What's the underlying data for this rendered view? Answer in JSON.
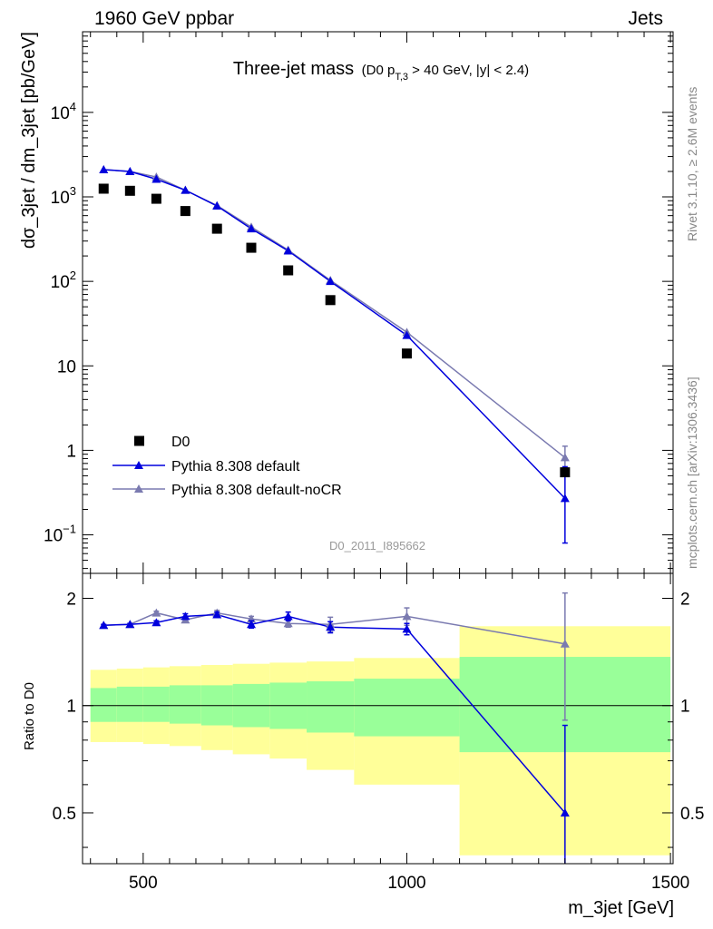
{
  "header": {
    "left": "1960 GeV ppbar",
    "right": "Jets",
    "side_top": "Rivet 3.1.10, ≥ 2.6M events",
    "side_bottom": "mcplots.cern.ch [arXiv:1306.3436]"
  },
  "chart_data": [
    {
      "type": "scatter",
      "panel": "main",
      "title": "Three-jet mass",
      "title_cut": "(D0 p_T,3 > 40 GeV, |y| < 2.4)",
      "title_parts": {
        "p": "(D0 p",
        "sub": "T,3",
        "rest": " > 40 GeV, |y| < 2.4)"
      },
      "xlabel": "m_3jet [GeV]",
      "ylabel": "dσ_3jet / dm_3jet [pb/GeV]",
      "xlim": [
        385,
        1505
      ],
      "ylim": [
        0.035,
        90000
      ],
      "yscale": "log",
      "watermark": "D0_2011_I895662",
      "legend_position": "lower-left",
      "y_ticks": [
        {
          "value": 10000,
          "base": "10",
          "exp": "4"
        },
        {
          "value": 1000,
          "base": "10",
          "exp": "3"
        },
        {
          "value": 100,
          "base": "10",
          "exp": "2"
        },
        {
          "value": 10,
          "base": "10",
          "exp": ""
        },
        {
          "value": 1,
          "base": "1",
          "exp": ""
        },
        {
          "value": 0.1,
          "base": "10",
          "exp": "−1"
        }
      ],
      "series": [
        {
          "name": "D0",
          "color": "#000000",
          "marker": "square",
          "x": [
            425,
            475,
            525,
            580,
            640,
            705,
            775,
            855,
            1000,
            1300
          ],
          "y": [
            1250,
            1180,
            950,
            680,
            420,
            250,
            135,
            60,
            14,
            0.55
          ]
        },
        {
          "name": "Pythia 8.308 default",
          "color": "#0000dd",
          "marker": "triangle",
          "x": [
            425,
            475,
            525,
            580,
            640,
            705,
            775,
            855,
            1000,
            1300
          ],
          "y": [
            2100,
            2000,
            1620,
            1200,
            780,
            420,
            230,
            100,
            23,
            0.27
          ],
          "yerr_low": [
            0,
            0,
            0,
            0,
            0,
            0,
            0,
            0,
            0,
            0.19
          ],
          "yerr_high": [
            0,
            0,
            0,
            0,
            0,
            0,
            0,
            0,
            0,
            0.37
          ]
        },
        {
          "name": "Pythia 8.308 default-noCR",
          "color": "#7a7ab0",
          "marker": "triangle",
          "x": [
            425,
            475,
            525,
            580,
            640,
            705,
            775,
            855,
            1000,
            1300
          ],
          "y": [
            2100,
            2000,
            1720,
            1200,
            790,
            440,
            235,
            103,
            25,
            0.82
          ],
          "yerr_low": [
            0,
            0,
            0,
            0,
            0,
            0,
            0,
            0,
            0,
            0.2
          ],
          "yerr_high": [
            0,
            0,
            0,
            0,
            0,
            0,
            0,
            0,
            0,
            0.3
          ]
        }
      ]
    },
    {
      "type": "line",
      "panel": "ratio",
      "xlabel": "m_3jet [GeV]",
      "ylabel": "Ratio to D0",
      "xlim": [
        385,
        1505
      ],
      "ylim": [
        0.36,
        2.35
      ],
      "yscale": "log",
      "x_ticks": [
        500,
        1000,
        1500
      ],
      "y_ticks": [
        0.5,
        1,
        2
      ],
      "bands": [
        {
          "xmin": 400,
          "xmax": 450,
          "stat_low": 0.9,
          "stat_high": 1.12,
          "syst_low": 0.79,
          "syst_high": 1.26
        },
        {
          "xmin": 450,
          "xmax": 500,
          "stat_low": 0.9,
          "stat_high": 1.13,
          "syst_low": 0.79,
          "syst_high": 1.27
        },
        {
          "xmin": 500,
          "xmax": 550,
          "stat_low": 0.9,
          "stat_high": 1.13,
          "syst_low": 0.78,
          "syst_high": 1.28
        },
        {
          "xmin": 550,
          "xmax": 610,
          "stat_low": 0.89,
          "stat_high": 1.14,
          "syst_low": 0.77,
          "syst_high": 1.29
        },
        {
          "xmin": 610,
          "xmax": 670,
          "stat_low": 0.88,
          "stat_high": 1.14,
          "syst_low": 0.75,
          "syst_high": 1.3
        },
        {
          "xmin": 670,
          "xmax": 740,
          "stat_low": 0.87,
          "stat_high": 1.15,
          "syst_low": 0.73,
          "syst_high": 1.31
        },
        {
          "xmin": 740,
          "xmax": 810,
          "stat_low": 0.86,
          "stat_high": 1.16,
          "syst_low": 0.71,
          "syst_high": 1.32
        },
        {
          "xmin": 810,
          "xmax": 900,
          "stat_low": 0.84,
          "stat_high": 1.17,
          "syst_low": 0.66,
          "syst_high": 1.33
        },
        {
          "xmin": 900,
          "xmax": 1100,
          "stat_low": 0.82,
          "stat_high": 1.19,
          "syst_low": 0.6,
          "syst_high": 1.36
        },
        {
          "xmin": 1100,
          "xmax": 1500,
          "stat_low": 0.74,
          "stat_high": 1.37,
          "syst_low": 0.38,
          "syst_high": 1.67
        }
      ],
      "series": [
        {
          "name": "Pythia 8.308 default",
          "color": "#0000dd",
          "x": [
            425,
            475,
            525,
            580,
            640,
            705,
            775,
            855,
            1000,
            1300
          ],
          "y": [
            1.68,
            1.69,
            1.71,
            1.78,
            1.8,
            1.69,
            1.78,
            1.66,
            1.64,
            0.5
          ],
          "yerr": [
            0.01,
            0.01,
            0.02,
            0.03,
            0.03,
            0.04,
            0.05,
            0.06,
            0.06,
            0.38
          ]
        },
        {
          "name": "Pythia 8.308 default-noCR",
          "color": "#7a7ab0",
          "x": [
            425,
            475,
            525,
            580,
            640,
            705,
            775,
            855,
            1000,
            1300
          ],
          "y": [
            1.68,
            1.69,
            1.82,
            1.74,
            1.82,
            1.75,
            1.7,
            1.69,
            1.78,
            1.49
          ],
          "yerr": [
            0.01,
            0.01,
            0.02,
            0.02,
            0.03,
            0.03,
            0.04,
            0.08,
            0.1,
            0.58
          ]
        }
      ]
    }
  ]
}
